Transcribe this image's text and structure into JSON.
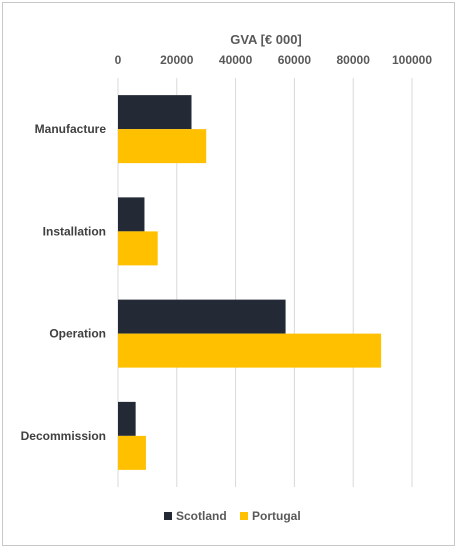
{
  "chart_data": {
    "type": "bar",
    "orientation": "horizontal",
    "title": "GVA [€ 000]",
    "xlabel": "GVA [€ 000]",
    "ylabel": "",
    "categories": [
      "Manufacture",
      "Installation",
      "Operation",
      "Decommission"
    ],
    "series": [
      {
        "name": "Scotland",
        "color": "#232a36",
        "values": [
          25000,
          9000,
          57000,
          6000
        ]
      },
      {
        "name": "Portugal",
        "color": "#ffc000",
        "values": [
          30000,
          13500,
          89500,
          9500
        ]
      }
    ],
    "xlim": [
      0,
      100000
    ],
    "ticks": [
      "0",
      "20000",
      "40000",
      "60000",
      "80000",
      "100000"
    ],
    "grid": true,
    "legend_position": "bottom",
    "axis_position": "top"
  }
}
